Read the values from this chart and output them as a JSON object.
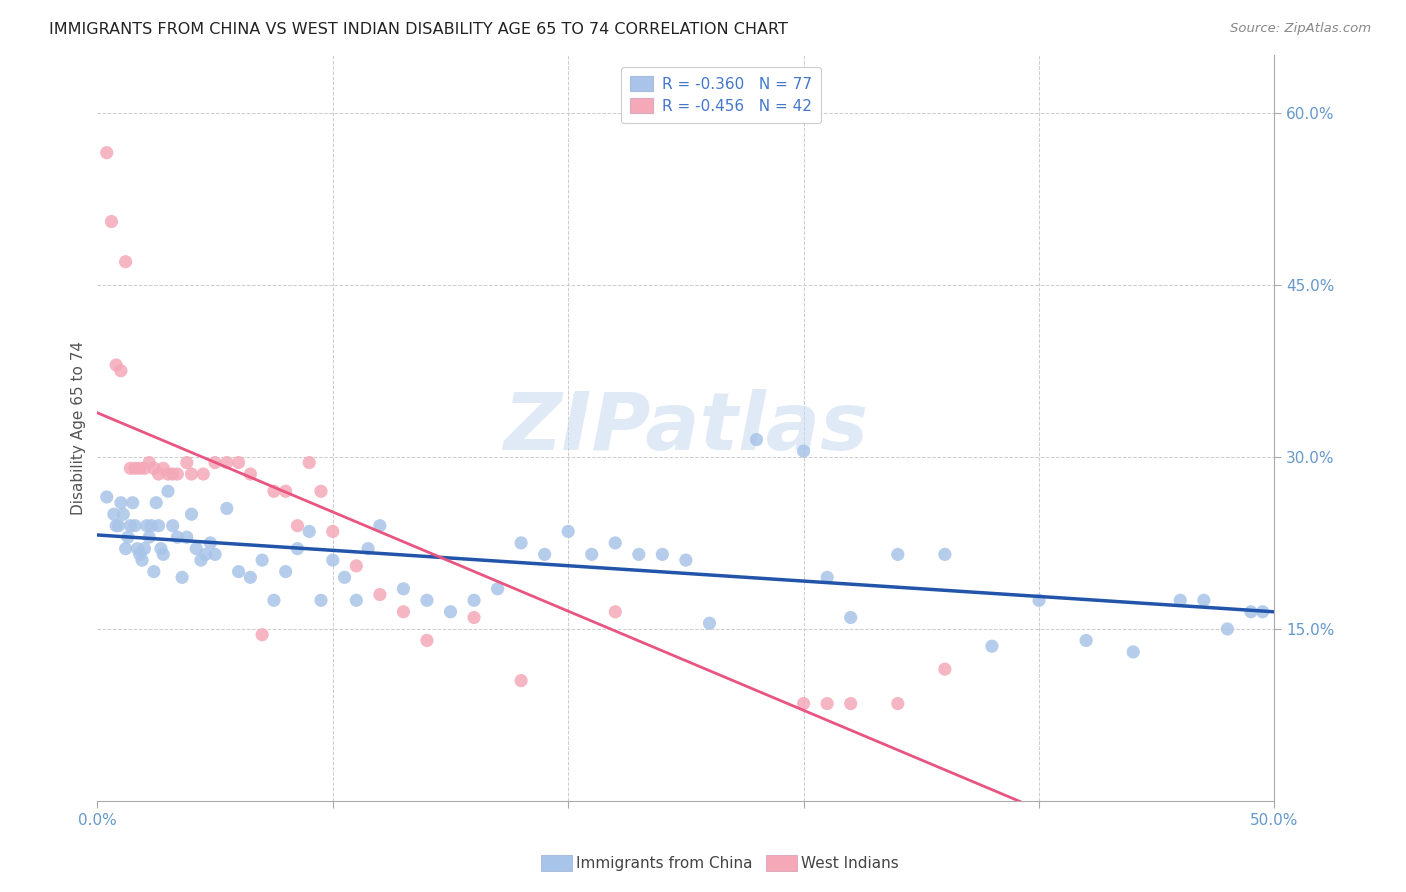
{
  "title": "IMMIGRANTS FROM CHINA VS WEST INDIAN DISABILITY AGE 65 TO 74 CORRELATION CHART",
  "source": "Source: ZipAtlas.com",
  "ylabel": "Disability Age 65 to 74",
  "xlim": [
    0.0,
    0.5
  ],
  "ylim": [
    0.0,
    0.65
  ],
  "xticks": [
    0.0,
    0.1,
    0.2,
    0.3,
    0.4,
    0.5
  ],
  "xticklabels": [
    "0.0%",
    "",
    "",
    "",
    "",
    "50.0%"
  ],
  "yticks": [
    0.15,
    0.3,
    0.45,
    0.6
  ],
  "yticklabels": [
    "15.0%",
    "30.0%",
    "45.0%",
    "60.0%"
  ],
  "bottom_xticks": [
    0.0,
    0.1,
    0.2,
    0.3,
    0.4,
    0.5
  ],
  "bottom_xticklabels": [
    "0.0%",
    "",
    "",
    "",
    "",
    "50.0%"
  ],
  "legend_label_china": "Immigrants from China",
  "legend_label_west": "West Indians",
  "china_R": "-0.360",
  "china_N": "77",
  "west_R": "-0.456",
  "west_N": "42",
  "china_scatter_color": "#a8c4e8",
  "west_scatter_color": "#f4a8b8",
  "china_line_color": "#2255aa",
  "west_line_color": "#e85580",
  "tick_label_color": "#6699cc",
  "background_color": "#ffffff",
  "grid_color": "#cccccc",
  "watermark_text": "ZIPatlas",
  "watermark_color": "#c8daf0",
  "legend_text_color": "#4477cc",
  "china_x": [
    0.004,
    0.007,
    0.008,
    0.009,
    0.01,
    0.011,
    0.012,
    0.013,
    0.014,
    0.015,
    0.016,
    0.017,
    0.018,
    0.019,
    0.02,
    0.021,
    0.022,
    0.023,
    0.024,
    0.025,
    0.026,
    0.027,
    0.028,
    0.03,
    0.032,
    0.034,
    0.036,
    0.038,
    0.04,
    0.042,
    0.044,
    0.046,
    0.048,
    0.05,
    0.055,
    0.06,
    0.065,
    0.07,
    0.075,
    0.08,
    0.085,
    0.09,
    0.095,
    0.1,
    0.105,
    0.11,
    0.115,
    0.12,
    0.13,
    0.14,
    0.15,
    0.16,
    0.17,
    0.18,
    0.19,
    0.2,
    0.21,
    0.22,
    0.23,
    0.24,
    0.25,
    0.26,
    0.28,
    0.3,
    0.31,
    0.32,
    0.34,
    0.36,
    0.38,
    0.4,
    0.42,
    0.44,
    0.46,
    0.47,
    0.48,
    0.49,
    0.495
  ],
  "china_y": [
    0.265,
    0.25,
    0.24,
    0.24,
    0.26,
    0.25,
    0.22,
    0.23,
    0.24,
    0.26,
    0.24,
    0.22,
    0.215,
    0.21,
    0.22,
    0.24,
    0.23,
    0.24,
    0.2,
    0.26,
    0.24,
    0.22,
    0.215,
    0.27,
    0.24,
    0.23,
    0.195,
    0.23,
    0.25,
    0.22,
    0.21,
    0.215,
    0.225,
    0.215,
    0.255,
    0.2,
    0.195,
    0.21,
    0.175,
    0.2,
    0.22,
    0.235,
    0.175,
    0.21,
    0.195,
    0.175,
    0.22,
    0.24,
    0.185,
    0.175,
    0.165,
    0.175,
    0.185,
    0.225,
    0.215,
    0.235,
    0.215,
    0.225,
    0.215,
    0.215,
    0.21,
    0.155,
    0.315,
    0.305,
    0.195,
    0.16,
    0.215,
    0.215,
    0.135,
    0.175,
    0.14,
    0.13,
    0.175,
    0.175,
    0.15,
    0.165,
    0.165
  ],
  "west_x": [
    0.004,
    0.006,
    0.008,
    0.01,
    0.012,
    0.014,
    0.016,
    0.018,
    0.02,
    0.022,
    0.024,
    0.026,
    0.028,
    0.03,
    0.032,
    0.034,
    0.038,
    0.04,
    0.045,
    0.05,
    0.055,
    0.06,
    0.065,
    0.07,
    0.075,
    0.08,
    0.085,
    0.09,
    0.095,
    0.1,
    0.11,
    0.12,
    0.13,
    0.14,
    0.16,
    0.18,
    0.22,
    0.3,
    0.31,
    0.32,
    0.34,
    0.36
  ],
  "west_y": [
    0.565,
    0.505,
    0.38,
    0.375,
    0.47,
    0.29,
    0.29,
    0.29,
    0.29,
    0.295,
    0.29,
    0.285,
    0.29,
    0.285,
    0.285,
    0.285,
    0.295,
    0.285,
    0.285,
    0.295,
    0.295,
    0.295,
    0.285,
    0.145,
    0.27,
    0.27,
    0.24,
    0.295,
    0.27,
    0.235,
    0.205,
    0.18,
    0.165,
    0.14,
    0.16,
    0.105,
    0.165,
    0.085,
    0.085,
    0.085,
    0.085,
    0.115
  ]
}
